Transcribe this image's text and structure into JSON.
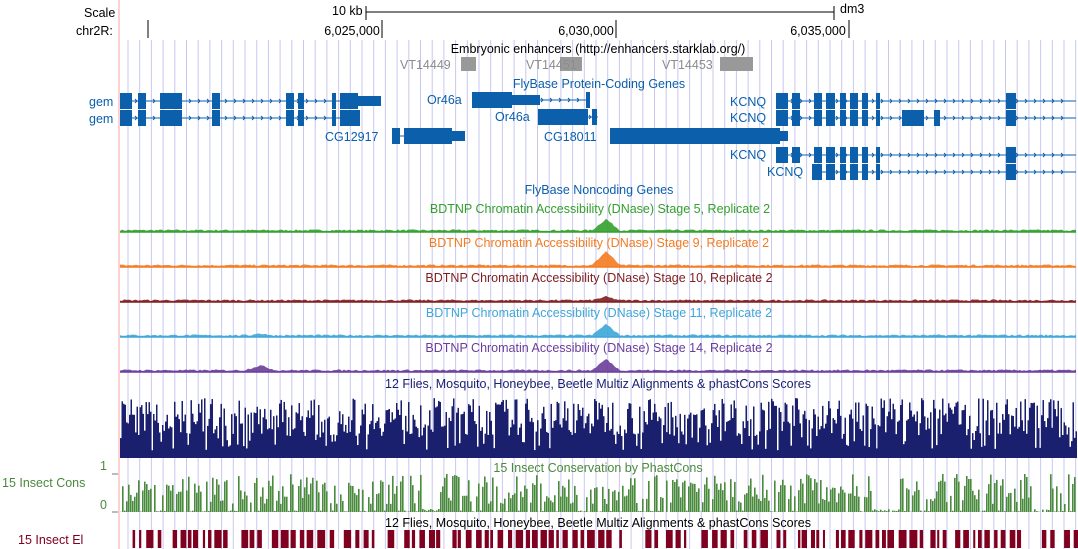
{
  "assembly": "dm3",
  "chromosome_label": "chr2R:",
  "scale": {
    "label": "Scale",
    "size": "10 kb"
  },
  "position_ticks": [
    "6,025,000",
    "6,030,000",
    "6,035,000"
  ],
  "tracks": {
    "enhancers": {
      "title": "Embryonic enhancers (http://enhancers.starklab.org/)",
      "items": [
        "VT14449",
        "VT14451",
        "VT14453"
      ]
    },
    "protein_coding": {
      "title": "FlyBase Protein-Coding Genes",
      "genes": {
        "gem1": "gem",
        "gem2": "gem",
        "or46a_1": "Or46a",
        "or46a_2": "Or46a",
        "cg12917": "CG12917",
        "cg18011": "CG18011",
        "kcnq1": "KCNQ",
        "kcnq2": "KCNQ",
        "kcnq3": "KCNQ",
        "kcnq4": "KCNQ"
      }
    },
    "noncoding": {
      "title": "FlyBase Noncoding Genes"
    },
    "dnase": [
      {
        "title": "BDTNP Chromatin Accessibility (DNase) Stage 5, Replicate 2",
        "color": "#33a02c"
      },
      {
        "title": "BDTNP Chromatin Accessibility (DNase) Stage 9, Replicate 2",
        "color": "#f47b20"
      },
      {
        "title": "BDTNP Chromatin Accessibility (DNase) Stage 10, Replicate 2",
        "color": "#7f1d1d"
      },
      {
        "title": "BDTNP Chromatin Accessibility (DNase) Stage 11, Replicate 2",
        "color": "#3ea6d8"
      },
      {
        "title": "BDTNP Chromatin Accessibility (DNase) Stage 14, Replicate 2",
        "color": "#6a3d9a"
      }
    ],
    "multiz": {
      "title": "12 Flies, Mosquito, Honeybee, Beetle Multiz Alignments & phastCons Scores",
      "color": "#1a1f6e"
    },
    "phastcons": {
      "title": "15 Insect Conservation by PhastCons",
      "side_label": "15 Insect Cons",
      "axis_max": "1",
      "axis_min": "0",
      "color": "#4a8a3c"
    },
    "elements": {
      "title": "12 Flies, Mosquito, Honeybee, Beetle Multiz Alignments & phastCons Scores",
      "side_label": "15 Insect El",
      "color": "#800020"
    }
  },
  "colors": {
    "gene": "#0b5fab",
    "enhancer": "#999999",
    "enhancer_text": "#8c8c8c",
    "grid": "#c8c8f0",
    "left_line": "#f4a6a6"
  }
}
